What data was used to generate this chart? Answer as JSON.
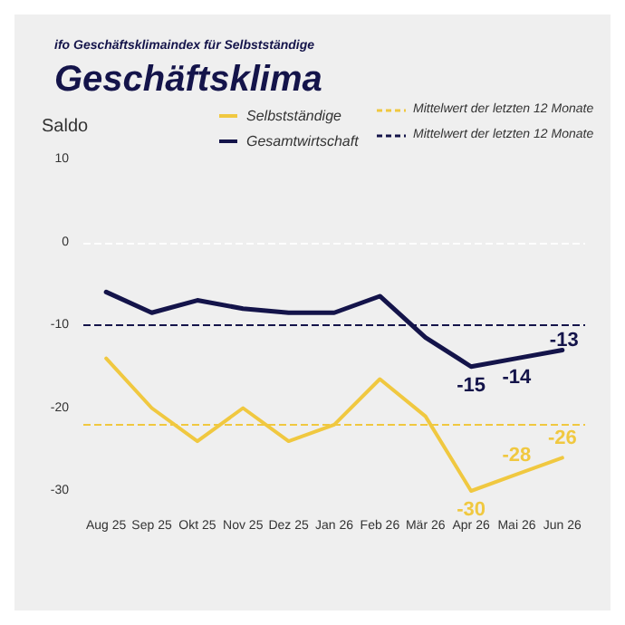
{
  "chart_data": {
    "type": "line",
    "subtitle": "ifo Geschäftsklimaindex für Selbstständige",
    "title": "Geschäftsklima",
    "ylabel": "Saldo",
    "categories": [
      "Aug 25",
      "Sep 25",
      "Okt 25",
      "Nov 25",
      "Dez 25",
      "Jan 26",
      "Feb 26",
      "Mär 26",
      "Apr 26",
      "Mai 26",
      "Jun 26"
    ],
    "series": [
      {
        "name": "Selbstständige",
        "color": "#f0c840",
        "values": [
          -14,
          -20,
          -24,
          -20,
          -24,
          -22,
          -16.5,
          -21,
          -30,
          -28,
          -26
        ],
        "value_labels": [
          null,
          null,
          null,
          null,
          null,
          null,
          null,
          null,
          "-30",
          "-28",
          "-26"
        ]
      },
      {
        "name": "Gesamtwirtschaft",
        "color": "#14144a",
        "values": [
          -6,
          -8.5,
          -7,
          -8,
          -8.5,
          -8.5,
          -6.5,
          -11.5,
          -15,
          -14,
          -13
        ],
        "value_labels": [
          null,
          null,
          null,
          null,
          null,
          null,
          null,
          null,
          "-15",
          "-14",
          "-13"
        ]
      }
    ],
    "ref_lines": [
      {
        "axis": "y",
        "value": 0,
        "color": "#ffffff",
        "line_style": "dashed"
      },
      {
        "axis": "y",
        "value": -22,
        "label": "Mittelwert der letzten 12 Monate",
        "color": "#f0c840",
        "line_style": "dashed"
      },
      {
        "axis": "y",
        "value": -10,
        "label": "Mittelwert der letzten 12 Monate",
        "color": "#14144a",
        "line_style": "dashed"
      }
    ],
    "ylim": [
      -30,
      10
    ],
    "yticks": [
      -30,
      -20,
      -10,
      0,
      10
    ],
    "grid": false,
    "legend": "top",
    "marker": "none",
    "line_style": "solid"
  }
}
